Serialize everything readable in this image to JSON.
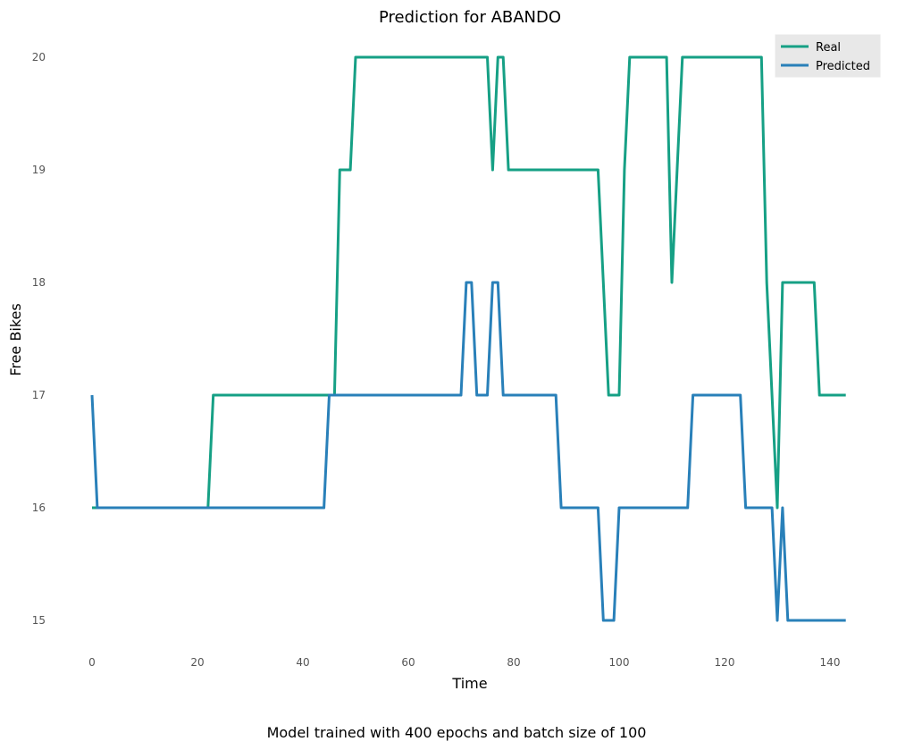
{
  "chart_data": {
    "type": "line",
    "title": "Prediction for ABANDO",
    "xlabel": "Time",
    "ylabel": "Free Bikes",
    "caption": "Model trained with 400 epochs and batch size of 100",
    "xlim": [
      -3,
      144
    ],
    "ylim": [
      14.7,
      20.2
    ],
    "xticks": [
      0,
      20,
      40,
      60,
      80,
      100,
      120,
      140
    ],
    "yticks": [
      15,
      16,
      17,
      18,
      19,
      20
    ],
    "grid": false,
    "legend": "top-right",
    "series": [
      {
        "name": "Real",
        "color": "#16a085",
        "points": [
          [
            0,
            16
          ],
          [
            22,
            16
          ],
          [
            23,
            17
          ],
          [
            46,
            17
          ],
          [
            47,
            19
          ],
          [
            49,
            19
          ],
          [
            50,
            20
          ],
          [
            75,
            20
          ],
          [
            76,
            19
          ],
          [
            77,
            20
          ],
          [
            78,
            20
          ],
          [
            79,
            19
          ],
          [
            96,
            19
          ],
          [
            98,
            17
          ],
          [
            100,
            17
          ],
          [
            101,
            19
          ],
          [
            102,
            20
          ],
          [
            109,
            20
          ],
          [
            110,
            18
          ],
          [
            111,
            19
          ],
          [
            112,
            20
          ],
          [
            127,
            20
          ],
          [
            128,
            18
          ],
          [
            130,
            16
          ],
          [
            131,
            18
          ],
          [
            137,
            18
          ],
          [
            138,
            17
          ],
          [
            143,
            17
          ]
        ]
      },
      {
        "name": "Predicted",
        "color": "#2980b9",
        "points": [
          [
            0,
            17
          ],
          [
            1,
            16
          ],
          [
            44,
            16
          ],
          [
            45,
            17
          ],
          [
            70,
            17
          ],
          [
            71,
            18
          ],
          [
            72,
            18
          ],
          [
            73,
            17
          ],
          [
            75,
            17
          ],
          [
            76,
            18
          ],
          [
            77,
            18
          ],
          [
            78,
            17
          ],
          [
            88,
            17
          ],
          [
            89,
            16
          ],
          [
            96,
            16
          ],
          [
            97,
            15
          ],
          [
            99,
            15
          ],
          [
            100,
            16
          ],
          [
            113,
            16
          ],
          [
            114,
            17
          ],
          [
            123,
            17
          ],
          [
            124,
            16
          ],
          [
            129,
            16
          ],
          [
            130,
            15
          ],
          [
            131,
            16
          ],
          [
            132,
            15
          ],
          [
            143,
            15
          ]
        ]
      }
    ]
  }
}
